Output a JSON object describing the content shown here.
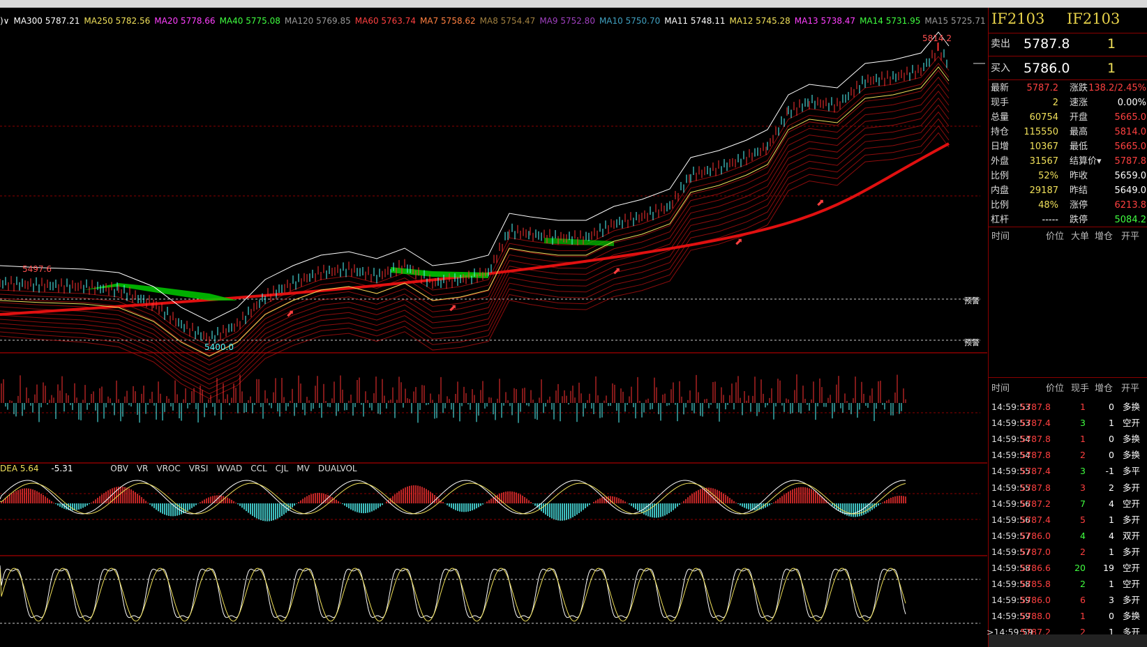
{
  "ma_legend": [
    {
      "text": ")∨",
      "color": "#ffffff"
    },
    {
      "text": "MA300 5787.21",
      "color": "#ffffff"
    },
    {
      "text": "MA250 5782.56",
      "color": "#f0e05a"
    },
    {
      "text": "MA20 5778.66",
      "color": "#ff40ff"
    },
    {
      "text": "MA40 5775.08",
      "color": "#40ff40"
    },
    {
      "text": "MA120 5769.85",
      "color": "#9a9a9a"
    },
    {
      "text": "MA60 5763.74",
      "color": "#ff4040"
    },
    {
      "text": "MA7 5758.62",
      "color": "#ff8040"
    },
    {
      "text": "MA8 5754.47",
      "color": "#a08040"
    },
    {
      "text": "MA9 5752.80",
      "color": "#a040c0"
    },
    {
      "text": "MA10 5750.70",
      "color": "#40a0c0"
    },
    {
      "text": "MA11 5748.11",
      "color": "#ffffff"
    },
    {
      "text": "MA12 5745.28",
      "color": "#f0e05a"
    },
    {
      "text": "MA13 5738.47",
      "color": "#ff40ff"
    },
    {
      "text": "MA14 5731.95",
      "color": "#40ff40"
    },
    {
      "text": "MA15 5725.71",
      "color": "#9a9a9a"
    }
  ],
  "price_labels": {
    "high": "5814.2",
    "mid": "5497.6",
    "low": "5400.0"
  },
  "alert_label": "预警",
  "indicator_values": {
    "dea": "DEA 5.64",
    "diff": "-5.31"
  },
  "indicator_tabs": [
    "OBV",
    "VR",
    "VROC",
    "VRSI",
    "WVAD",
    "CCL",
    "CJL",
    "MV",
    "DUALVOL"
  ],
  "colors": {
    "up": "#ff3232",
    "down": "#54ffff",
    "green_band": "#00cc00",
    "panel_border": "#8b0000",
    "accent_yellow": "#e8d34a"
  },
  "panel": {
    "symbol_left": "IF2103",
    "symbol_right": "IF2103",
    "sell": {
      "label": "卖出",
      "price": "5787.8",
      "qty": "1"
    },
    "buy": {
      "label": "买入",
      "price": "5786.0",
      "qty": "1"
    },
    "stats": [
      {
        "l1": "最新",
        "v1": "5787.2",
        "c1": "#ff4040",
        "l2": "涨跌",
        "v2": "138.2/2.45%",
        "c2": "#ff4040"
      },
      {
        "l1": "现手",
        "v1": "2",
        "c1": "#f0e05a",
        "l2": "速涨",
        "v2": "0.00%",
        "c2": "#ffffff"
      },
      {
        "l1": "总量",
        "v1": "60754",
        "c1": "#f0e05a",
        "l2": "开盘",
        "v2": "5665.0",
        "c2": "#ff4040"
      },
      {
        "l1": "持仓",
        "v1": "115550",
        "c1": "#f0e05a",
        "l2": "最高",
        "v2": "5814.0",
        "c2": "#ff4040"
      },
      {
        "l1": "日增",
        "v1": "10367",
        "c1": "#f0e05a",
        "l2": "最低",
        "v2": "5665.0",
        "c2": "#ff4040"
      },
      {
        "l1": "外盘",
        "v1": "31567",
        "c1": "#f0e05a",
        "l2": "结算价▾",
        "v2": "5787.8",
        "c2": "#ff4040"
      },
      {
        "l1": "比例",
        "v1": "52%",
        "c1": "#f0e05a",
        "l2": "昨收",
        "v2": "5659.0",
        "c2": "#ffffff"
      },
      {
        "l1": "内盘",
        "v1": "29187",
        "c1": "#f0e05a",
        "l2": "昨结",
        "v2": "5649.0",
        "c2": "#ffffff"
      },
      {
        "l1": "比例",
        "v1": "48%",
        "c1": "#f0e05a",
        "l2": "涨停",
        "v2": "6213.8",
        "c2": "#ff4040"
      },
      {
        "l1": "杠杆",
        "v1": "-----",
        "c1": "#ffffff",
        "l2": "跌停",
        "v2": "5084.2",
        "c2": "#40ff40"
      }
    ],
    "bigorder_headers": [
      "时间",
      "价位",
      "大单",
      "增仓",
      "开平"
    ],
    "trade_headers": [
      "时间",
      "价位",
      "现手",
      "增仓",
      "开平"
    ],
    "trades": [
      {
        "time": "14:59:53",
        "price": "5787.8",
        "qty": "1",
        "qc": "#ff4040",
        "oi": "0",
        "type": "多换"
      },
      {
        "time": "14:59:53",
        "price": "5787.4",
        "qty": "3",
        "qc": "#40ff40",
        "oi": "1",
        "type": "空开"
      },
      {
        "time": "14:59:54",
        "price": "5787.8",
        "qty": "1",
        "qc": "#ff4040",
        "oi": "0",
        "type": "多换"
      },
      {
        "time": "14:59:54",
        "price": "5787.8",
        "qty": "2",
        "qc": "#ff4040",
        "oi": "0",
        "type": "多换"
      },
      {
        "time": "14:59:55",
        "price": "5787.4",
        "qty": "3",
        "qc": "#40ff40",
        "oi": "-1",
        "type": "多平"
      },
      {
        "time": "14:59:55",
        "price": "5787.8",
        "qty": "3",
        "qc": "#ff4040",
        "oi": "2",
        "type": "多开"
      },
      {
        "time": "14:59:56",
        "price": "5787.2",
        "qty": "7",
        "qc": "#40ff40",
        "oi": "4",
        "type": "空开"
      },
      {
        "time": "14:59:56",
        "price": "5787.4",
        "qty": "5",
        "qc": "#ff4040",
        "oi": "1",
        "type": "多开"
      },
      {
        "time": "14:59:57",
        "price": "5786.0",
        "qty": "4",
        "qc": "#40ff40",
        "oi": "4",
        "type": "双开"
      },
      {
        "time": "14:59:57",
        "price": "5787.0",
        "qty": "2",
        "qc": "#ff4040",
        "oi": "1",
        "type": "多开"
      },
      {
        "time": "14:59:58",
        "price": "5786.6",
        "qty": "20",
        "qc": "#40ff40",
        "oi": "19",
        "type": "空开"
      },
      {
        "time": "14:59:58",
        "price": "5785.8",
        "qty": "2",
        "qc": "#40ff40",
        "oi": "1",
        "type": "空开"
      },
      {
        "time": "14:59:59",
        "price": "5786.0",
        "qty": "6",
        "qc": "#ff4040",
        "oi": "3",
        "type": "多开"
      },
      {
        "time": "14:59:59",
        "price": "5788.0",
        "qty": "1",
        "qc": "#ff4040",
        "oi": "0",
        "type": "多换"
      },
      {
        "time": ">14:59:59",
        "price": "5787.2",
        "qty": "2",
        "qc": "#ff4040",
        "oi": "1",
        "type": "多开"
      }
    ]
  }
}
